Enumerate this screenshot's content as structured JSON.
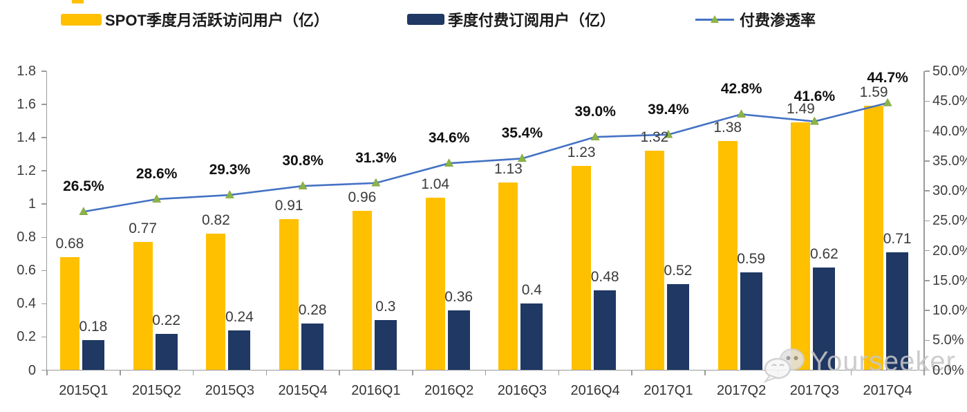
{
  "legend": {
    "items": [
      {
        "label": "SPOT季度月活跃访问用户（亿）",
        "swatch": "bar",
        "color": "#FFC000"
      },
      {
        "label": "季度付费订阅用户（亿）",
        "swatch": "bar",
        "color": "#1F3864"
      },
      {
        "label": "付费渗透率",
        "swatch": "line-marker",
        "line_color": "#4472C4",
        "marker_color": "#8CB445"
      }
    ]
  },
  "chart_data": {
    "type": "combo-bar-line",
    "categories": [
      "2015Q1",
      "2015Q2",
      "2015Q3",
      "2015Q4",
      "2016Q1",
      "2016Q2",
      "2016Q3",
      "2016Q4",
      "2017Q1",
      "2017Q2",
      "2017Q3",
      "2017Q4"
    ],
    "series": [
      {
        "name": "SPOT季度月活跃访问用户（亿）",
        "type": "bar",
        "axis": "left",
        "color": "#FFC000",
        "values": [
          0.68,
          0.77,
          0.82,
          0.91,
          0.96,
          1.04,
          1.13,
          1.23,
          1.32,
          1.38,
          1.49,
          1.59
        ],
        "data_labels": [
          "0.68",
          "0.77",
          "0.82",
          "0.91",
          "0.96",
          "1.04",
          "1.13",
          "1.23",
          "1.32",
          "1.38",
          "1.49",
          "1.59"
        ]
      },
      {
        "name": "季度付费订阅用户（亿）",
        "type": "bar",
        "axis": "left",
        "color": "#1F3864",
        "values": [
          0.18,
          0.22,
          0.24,
          0.28,
          0.3,
          0.36,
          0.4,
          0.48,
          0.52,
          0.59,
          0.62,
          0.71
        ],
        "data_labels": [
          "0.18",
          "0.22",
          "0.24",
          "0.28",
          "0.3",
          "0.36",
          "0.4",
          "0.48",
          "0.52",
          "0.59",
          "0.62",
          "0.71"
        ]
      },
      {
        "name": "付费渗透率",
        "type": "line",
        "axis": "right",
        "color": "#4472C4",
        "marker": "triangle",
        "marker_color": "#8CB445",
        "values": [
          26.5,
          28.6,
          29.3,
          30.8,
          31.3,
          34.6,
          35.4,
          39.0,
          39.4,
          42.8,
          41.6,
          44.7
        ],
        "data_labels": [
          "26.5%",
          "28.6%",
          "29.3%",
          "30.8%",
          "31.3%",
          "34.6%",
          "35.4%",
          "39.0%",
          "39.4%",
          "42.8%",
          "41.6%",
          "44.7%"
        ]
      }
    ],
    "left_axis": {
      "min": 0,
      "max": 1.8,
      "tick_labels": [
        "1.8",
        "1.6",
        "1.4",
        "1.2",
        "1",
        "0.8",
        "0.6",
        "0.4",
        "0.2",
        "0"
      ]
    },
    "right_axis": {
      "min": 0,
      "max": 50,
      "tick_labels": [
        "50.0%",
        "45.0%",
        "40.0%",
        "35.0%",
        "30.0%",
        "25.0%",
        "20.0%",
        "15.0%",
        "10.0%",
        "5.0%",
        "0.0%"
      ]
    },
    "legend_position": "top",
    "grid": false,
    "title": ""
  },
  "watermark": {
    "text": "Yourseeker",
    "icon": "wechat-icon"
  }
}
